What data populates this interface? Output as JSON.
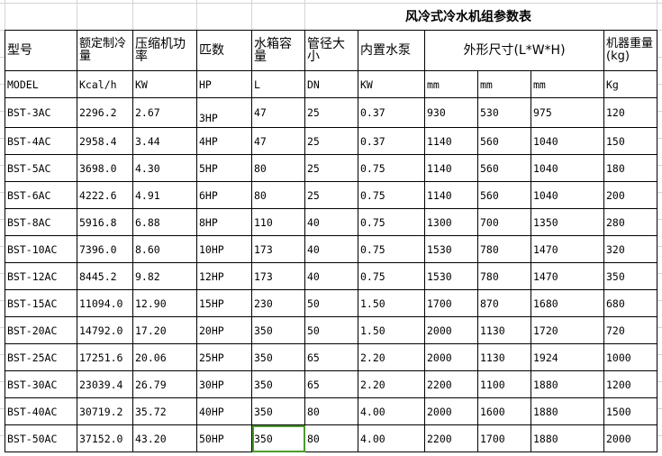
{
  "title": "风冷式冷水机组参数表",
  "headers": [
    "型号",
    "额定制冷量",
    "压缩机功率",
    "匹数",
    "水箱容量",
    "管径大小",
    "内置水泵",
    "外形尺寸(L*W*H)",
    "机器重量(kg)"
  ],
  "units": [
    "MODEL",
    "Kcal/h",
    "KW",
    "HP",
    "L",
    "DN",
    "KW",
    "mm",
    "mm",
    "mm",
    "Kg"
  ],
  "rows": [
    [
      "BST-3AC",
      "2296.2",
      "2.67",
      "3HP",
      "47",
      "25",
      "0.37",
      "930",
      "530",
      "975",
      "120"
    ],
    [
      "BST-4AC",
      "2958.4",
      "3.44",
      "4HP",
      "47",
      "25",
      "0.37",
      "1140",
      "560",
      "1040",
      "150"
    ],
    [
      "BST-5AC",
      "3698.0",
      "4.30",
      "5HP",
      "80",
      "25",
      "0.75",
      "1140",
      "560",
      "1040",
      "180"
    ],
    [
      "BST-6AC",
      "4222.6",
      "4.91",
      "6HP",
      "80",
      "25",
      "0.75",
      "1140",
      "560",
      "1040",
      "200"
    ],
    [
      "BST-8AC",
      "5916.8",
      "6.88",
      "8HP",
      "110",
      "40",
      "0.75",
      "1300",
      "700",
      "1350",
      "280"
    ],
    [
      "BST-10AC",
      "7396.0",
      "8.60",
      "10HP",
      "173",
      "40",
      "0.75",
      "1530",
      "780",
      "1470",
      "320"
    ],
    [
      "BST-12AC",
      "8445.2",
      "9.82",
      "12HP",
      "173",
      "40",
      "0.75",
      "1530",
      "780",
      "1470",
      "350"
    ],
    [
      "BST-15AC",
      "11094.0",
      "12.90",
      "15HP",
      "230",
      "50",
      "1.50",
      "1700",
      "870",
      "1680",
      "680"
    ],
    [
      "BST-20AC",
      "14792.0",
      "17.20",
      "20HP",
      "350",
      "50",
      "1.50",
      "2000",
      "1130",
      "1720",
      "720"
    ],
    [
      "BST-25AC",
      "17251.6",
      "20.06",
      "25HP",
      "350",
      "65",
      "2.20",
      "2000",
      "1130",
      "1924",
      "1000"
    ],
    [
      "BST-30AC",
      "23039.4",
      "26.79",
      "30HP",
      "350",
      "65",
      "2.20",
      "2200",
      "1100",
      "1880",
      "1200"
    ],
    [
      "BST-40AC",
      "30719.2",
      "35.72",
      "40HP",
      "350",
      "80",
      "4.00",
      "2000",
      "1600",
      "1880",
      "1500"
    ],
    [
      "BST-50AC",
      "37152.0",
      "43.20",
      "50HP",
      "350",
      "80",
      "4.00",
      "2200",
      "1700",
      "1880",
      "2000"
    ]
  ],
  "selected_cell_color": "#4e9a2e"
}
